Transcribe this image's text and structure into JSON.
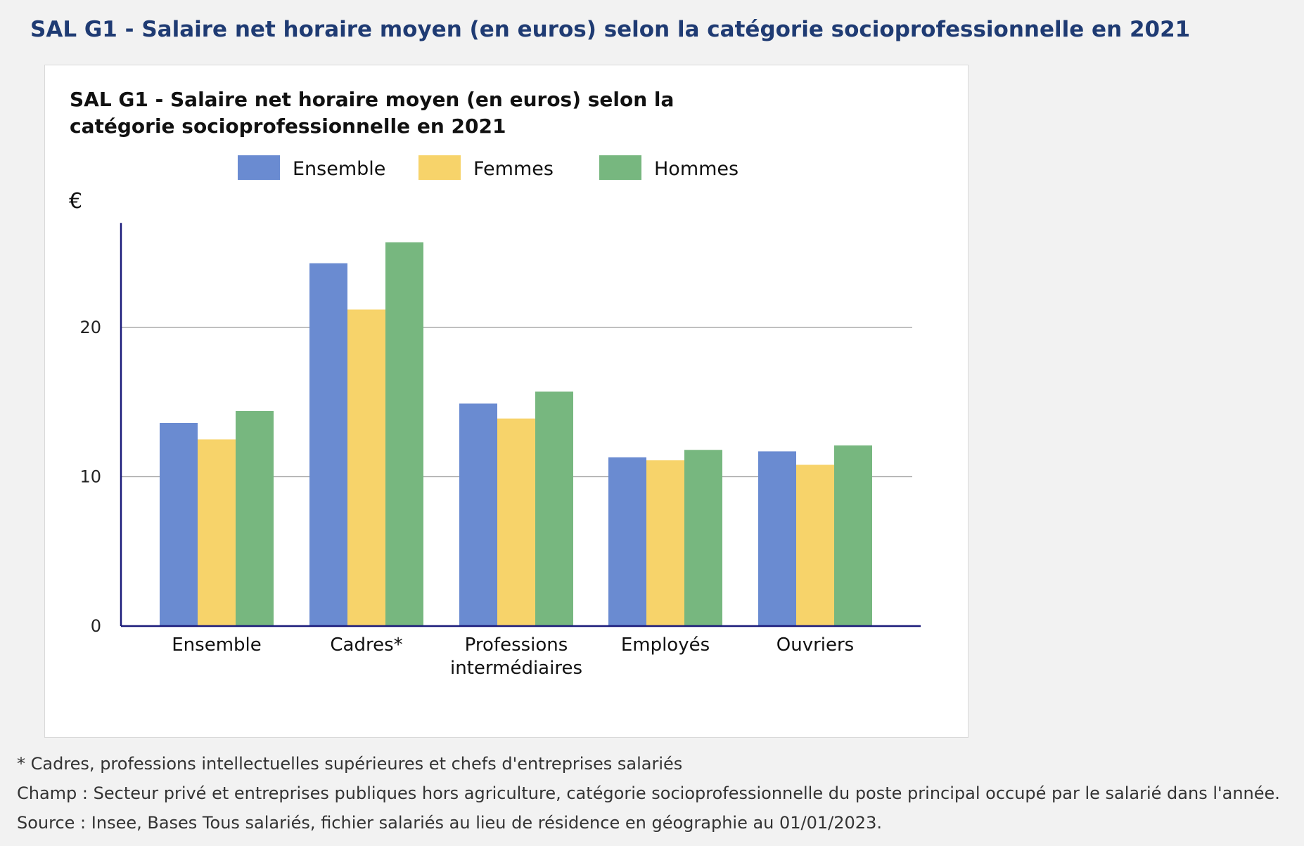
{
  "page_title": "SAL G1 - Salaire net horaire moyen (en euros) selon la catégorie socioprofessionnelle en 2021",
  "footnotes": {
    "note": "* Cadres, professions intellectuelles supérieures et chefs d'entreprises salariés",
    "champ": "Champ : Secteur privé et entreprises publiques hors agriculture, catégorie socioprofessionnelle du poste principal occupé par le salarié dans l'année.",
    "source": "Source : Insee, Bases Tous salariés, fichier salariés au lieu de résidence en géographie au 01/01/2023."
  },
  "chart_data": {
    "type": "bar",
    "title": "SAL G1 - Salaire net horaire moyen (en euros) selon la catégorie socioprofessionnelle en 2021",
    "ylabel": "€",
    "xlabel": "",
    "ylim": [
      0,
      27
    ],
    "yticks": [
      0,
      10,
      20
    ],
    "grid": true,
    "legend": "top-center",
    "categories": [
      [
        "Ensemble"
      ],
      [
        "Cadres*"
      ],
      [
        "Professions",
        "intermédiaires"
      ],
      [
        "Employés"
      ],
      [
        "Ouvriers"
      ]
    ],
    "series": [
      {
        "name": "Ensemble",
        "color": "#6a8bd1",
        "values": [
          13.6,
          24.3,
          14.9,
          11.3,
          11.7
        ]
      },
      {
        "name": "Femmes",
        "color": "#f7d36a",
        "values": [
          12.5,
          21.2,
          13.9,
          11.1,
          10.8
        ]
      },
      {
        "name": "Hommes",
        "color": "#77b77f",
        "values": [
          14.4,
          25.7,
          15.7,
          11.8,
          12.1
        ]
      }
    ]
  }
}
